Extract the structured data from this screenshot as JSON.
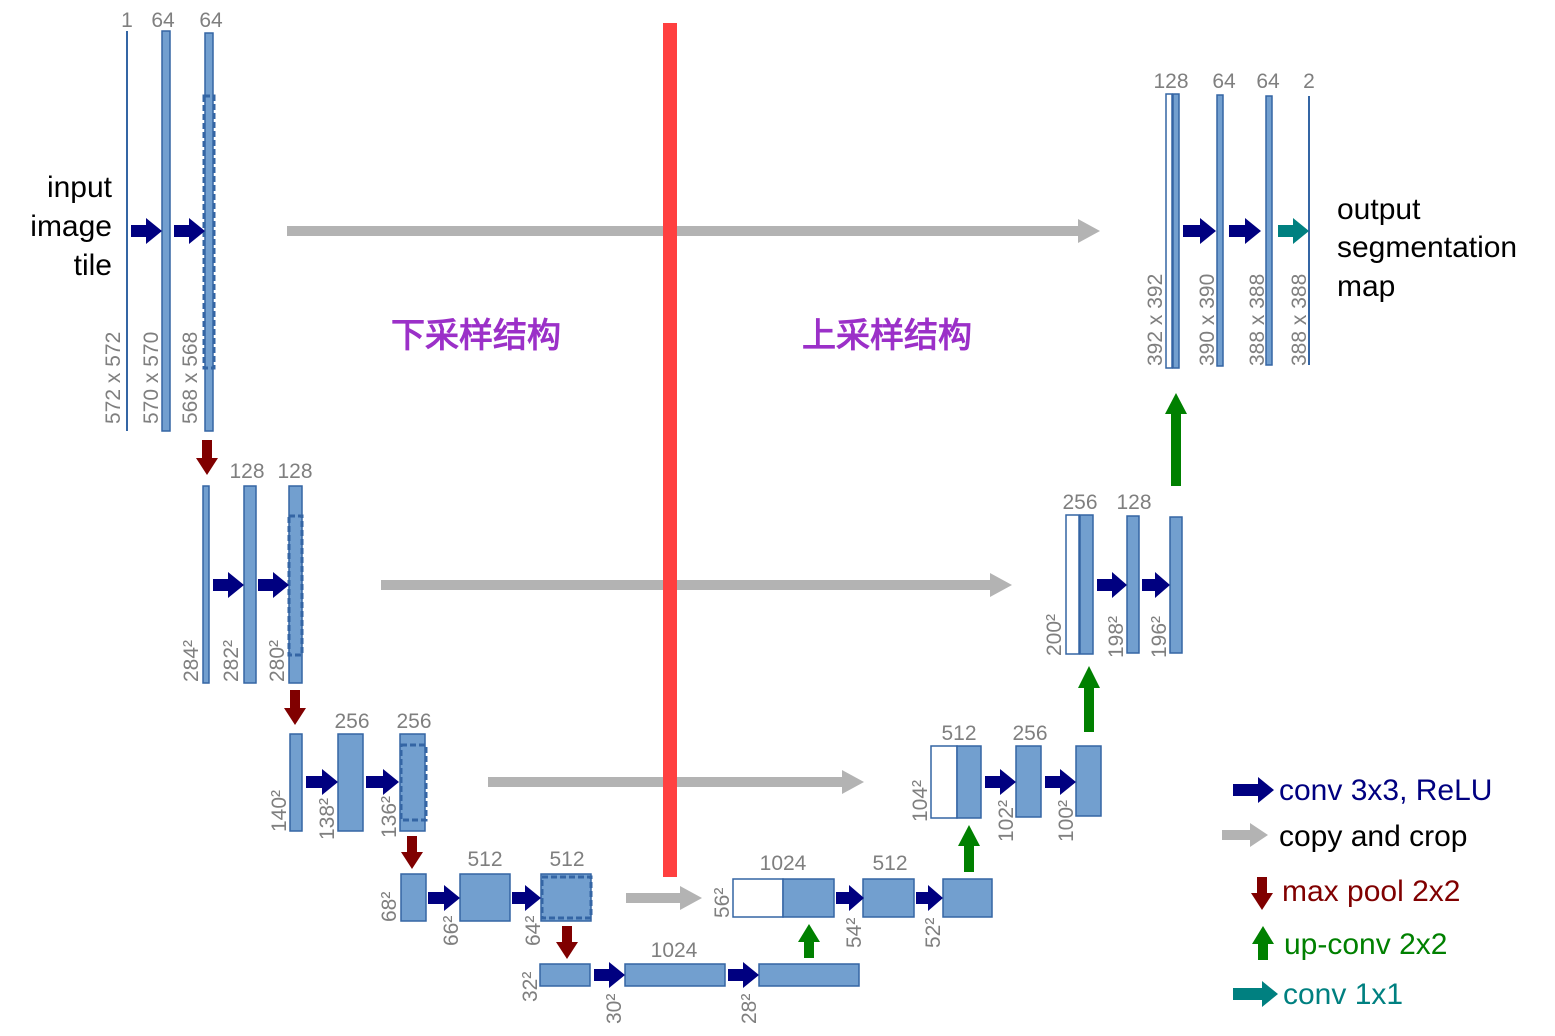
{
  "colors": {
    "block_fill": "#729fcf",
    "block_stroke": "#3465a4",
    "conv": "#000080",
    "copy": "#b3b3b3",
    "maxpool": "#800000",
    "upconv": "#008000",
    "conv1x1": "#008080",
    "divider": "#ff4040",
    "region_label": "#9b30c8",
    "annotation": "#7f7f7f"
  },
  "labels": {
    "input": [
      "input",
      "image",
      "tile"
    ],
    "output": [
      "output",
      "segmentation",
      "map"
    ],
    "downsampling": "下采样结构",
    "upsampling": "上采样结构"
  },
  "legend": [
    {
      "arrow": "conv",
      "text": "conv 3x3, ReLU"
    },
    {
      "arrow": "copy",
      "text": "copy and crop"
    },
    {
      "arrow": "maxpool",
      "text": "max pool 2x2"
    },
    {
      "arrow": "upconv",
      "text": "up-conv 2x2"
    },
    {
      "arrow": "conv1x1",
      "text": "conv 1x1"
    }
  ],
  "channels": {
    "l1": [
      "1",
      "64",
      "64"
    ],
    "l2": [
      "128",
      "128"
    ],
    "l3": [
      "256",
      "256"
    ],
    "l4": [
      "512",
      "512"
    ],
    "l5": [
      "1024"
    ],
    "u4": [
      "1024",
      "512"
    ],
    "u3": [
      "512",
      "256"
    ],
    "u2": [
      "256",
      "128"
    ],
    "u1": [
      "128",
      "64",
      "64",
      "2"
    ]
  },
  "sizes": {
    "l1": [
      "572 x 572",
      "570 x 570",
      "568 x 568"
    ],
    "l2": [
      "284²",
      "282²",
      "280²"
    ],
    "l3": [
      "140²",
      "138²",
      "136²"
    ],
    "l4": [
      "68²",
      "66²",
      "64²"
    ],
    "l5": [
      "32²",
      "30²",
      "28²"
    ],
    "u4": [
      "56²",
      "54²",
      "52²"
    ],
    "u3": [
      "104²",
      "102²",
      "100²"
    ],
    "u2": [
      "200²",
      "198²",
      "196²"
    ],
    "u1": [
      "392 x 392",
      "390 x 390",
      "388 x 388",
      "388 x 388"
    ]
  }
}
